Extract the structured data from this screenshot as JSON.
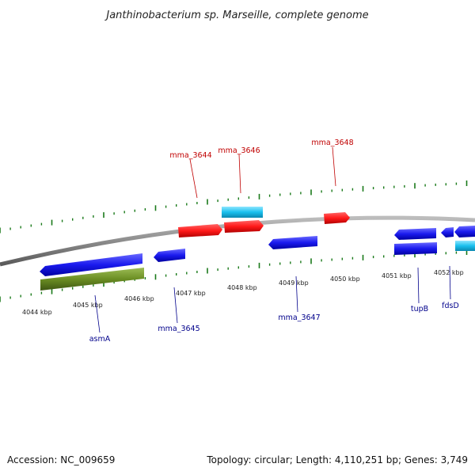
{
  "title": "Janthinobacterium sp. Marseille, complete genome",
  "footer": {
    "accession": "Accession: NC_009659",
    "summary": "Topology: circular; Length: 4,110,251 bp; Genes: 3,749"
  },
  "colors": {
    "backbone": "#8c8c8c",
    "tick": "#1a7a1a",
    "red_gene": "#ff1a1a",
    "blue_gene": "#1a1aee",
    "cyan_gene": "#19c0ee",
    "olive_gene": "#6b8e23",
    "top_label": "#c00000",
    "bottom_label": "#00008b"
  },
  "tick_labels": [
    "4044 kbp",
    "4045 kbp",
    "4046 kbp",
    "4047 kbp",
    "4048 kbp",
    "4049 kbp",
    "4050 kbp",
    "4051 kbp",
    "4052 kbp"
  ],
  "top_labels": [
    "mma_3644",
    "mma_3646",
    "mma_3648"
  ],
  "bottom_labels": [
    "asmA",
    "mma_3645",
    "mma_3647",
    "tupB",
    "fdsD"
  ]
}
